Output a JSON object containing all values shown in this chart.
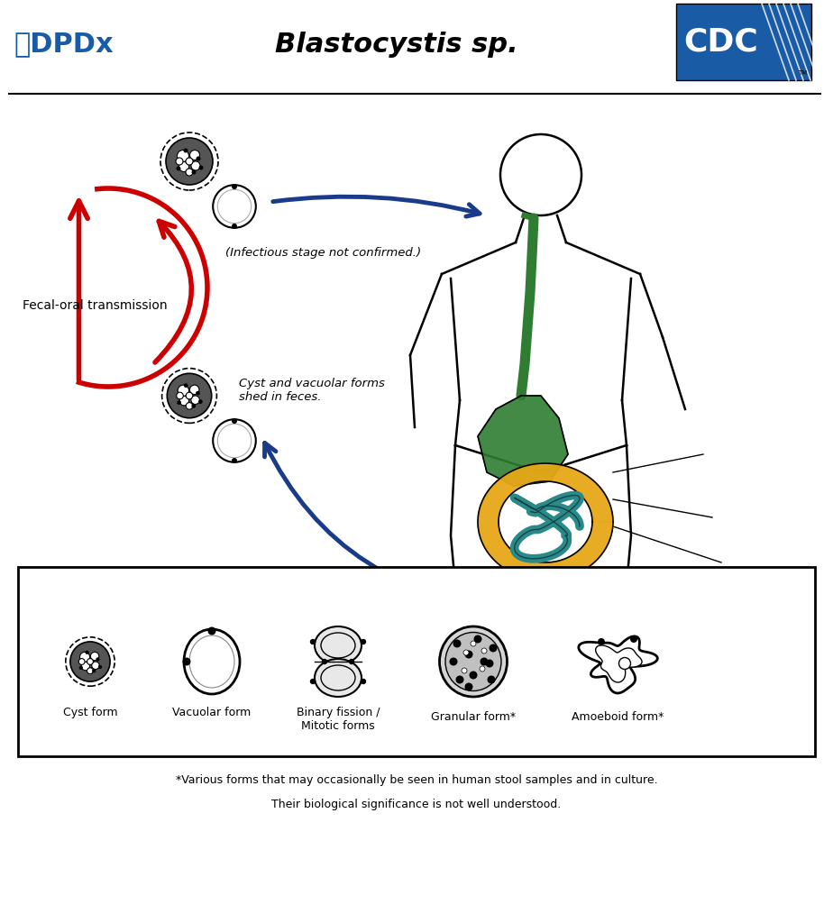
{
  "title": "Blastocystis sp.",
  "title_italic": true,
  "bg_color": "#ffffff",
  "dpdx_color": "#1a5ba6",
  "cdc_blue": "#1a5ba6",
  "fecal_oral_text": "Fecal-oral transmission",
  "infectious_text": "(Infectious stage not confirmed.)",
  "cyst_shed_text": "Cyst and vacuolar forms\nshed in feces.",
  "footnote_line1": "*Various forms that may occasionally be seen in human stool samples and in culture.",
  "footnote_line2": "Their biological significance is not well understood.",
  "form_labels": [
    "Cyst form",
    "Vacuolar form",
    "Binary fission /\nMitotic forms",
    "Granular form*",
    "Amoeboid form*"
  ],
  "red_arrow_color": "#cc0000",
  "blue_arrow_color": "#1a3a8a",
  "body_outline_color": "#000000",
  "esophagus_color": "#2e7d32",
  "stomach_color": "#2e7d32",
  "large_intestine_color": "#e6a817",
  "small_intestine_color": "#2a8a8a"
}
